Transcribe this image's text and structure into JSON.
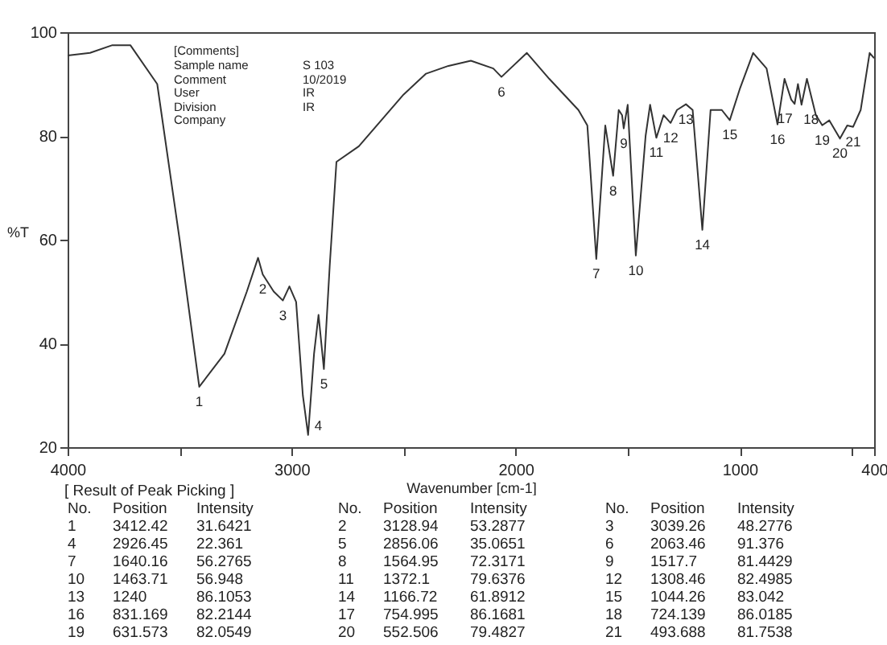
{
  "chart_data": {
    "type": "line",
    "xlabel": "Wavenumber [cm-1]",
    "ylabel": "%T",
    "xlim": [
      4000,
      400
    ],
    "ylim": [
      20,
      100
    ],
    "xticks": [
      4000,
      {
        "value": 3500,
        "label": null
      },
      3000,
      {
        "value": 2500,
        "label": null
      },
      2000,
      {
        "value": 1500,
        "label": null
      },
      1000,
      {
        "value": 500,
        "label": null
      },
      400
    ],
    "yticks": [
      20,
      40,
      60,
      80,
      100
    ],
    "x": [
      4000,
      3900,
      3800,
      3720,
      3600,
      3500,
      3412.42,
      3300,
      3200,
      3150,
      3128.94,
      3080,
      3039.26,
      3010,
      2980,
      2950,
      2926.45,
      2900,
      2880,
      2856.06,
      2830,
      2800,
      2700,
      2600,
      2500,
      2400,
      2300,
      2200,
      2100,
      2063.46,
      1950,
      1850,
      1720,
      1680,
      1640.16,
      1600,
      1564.95,
      1540,
      1525,
      1517.7,
      1500,
      1463.71,
      1420,
      1400,
      1372.1,
      1340,
      1308.46,
      1280,
      1240,
      1210,
      1166.72,
      1130,
      1080,
      1044.26,
      1000,
      940,
      880,
      831.169,
      800,
      770,
      754.995,
      740,
      724.139,
      700,
      660,
      631.573,
      600,
      552.506,
      520,
      493.688,
      460,
      420,
      400
    ],
    "series": [
      {
        "color": "#333333",
        "values": [
          95.5,
          96,
          97.5,
          97.5,
          90,
          60,
          31.6421,
          38,
          50,
          56.5,
          53.2877,
          50,
          48.2776,
          51,
          48,
          30,
          22.361,
          38,
          45.5,
          35.0651,
          55,
          75,
          78,
          83,
          88,
          92,
          93.5,
          94.5,
          93,
          91.376,
          96,
          91,
          85,
          82,
          56.2765,
          82,
          72.3171,
          85,
          84,
          81.4429,
          86,
          56.948,
          80,
          86,
          79.6376,
          84,
          82.4985,
          85,
          86.1053,
          85,
          61.8912,
          85,
          85,
          83.042,
          89,
          96,
          93,
          82.2144,
          91,
          87,
          86.1681,
          90,
          86.0185,
          91,
          84,
          82.0549,
          83,
          79.4827,
          82,
          81.7538,
          85,
          96,
          95
        ]
      }
    ],
    "annotations": [
      "[Comments]",
      "Sample name",
      "S 103",
      "Comment",
      "10/2019",
      "User",
      "IR",
      "Division",
      "IR",
      "Company",
      "[ Result of Peak Picking ]",
      "No.",
      "Position",
      "Intensity",
      "No.",
      "Position",
      "Intensity",
      "No.",
      "Position",
      "Intensity",
      "1",
      "3412.42",
      "31.6421",
      "2",
      "3128.94",
      "53.2877",
      "3",
      "3039.26",
      "48.2776",
      "4",
      "2926.45",
      "22.361",
      "5",
      "2856.06",
      "35.0651",
      "6",
      "2063.46",
      "91.376",
      "7",
      "1640.16",
      "56.2765",
      "8",
      "1564.95",
      "72.3171",
      "9",
      "1517.7",
      "81.4429",
      "10",
      "1463.71",
      "56.948",
      "11",
      "1372.1",
      "79.6376",
      "12",
      "1308.46",
      "82.4985",
      "13",
      "1240",
      "86.1053",
      "14",
      "1166.72",
      "61.8912",
      "15",
      "1044.26",
      "83.042",
      "16",
      "831.169",
      "82.2144",
      "17",
      "754.995",
      "86.1681",
      "18",
      "724.139",
      "86.0185",
      "19",
      "631.573",
      "82.0549",
      "20",
      "552.506",
      "79.4827",
      "21",
      "493.688",
      "81.7538",
      {
        "text": "1",
        "x": 3412.42,
        "y": 31.6421
      },
      {
        "text": "2",
        "x": 3128.94,
        "y": 53.2877
      },
      {
        "text": "3",
        "x": 3039.26,
        "y": 48.2776
      },
      {
        "text": "4",
        "x": 2926.45,
        "y": 22.361
      },
      {
        "text": "5",
        "x": 2856.06,
        "y": 35.0651
      },
      {
        "text": "6",
        "x": 2063.46,
        "y": 91.376
      },
      {
        "text": "7",
        "x": 1640.16,
        "y": 56.2765
      },
      {
        "text": "8",
        "x": 1564.95,
        "y": 72.3171
      },
      {
        "text": "9",
        "x": 1517.7,
        "y": 81.4429
      },
      {
        "text": "10",
        "x": 1463.71,
        "y": 56.948
      },
      {
        "text": "11",
        "x": 1372.1,
        "y": 79.6376
      },
      {
        "text": "12",
        "x": 1308.46,
        "y": 82.4985
      },
      {
        "text": "13",
        "x": 1240,
        "y": 86.1053
      },
      {
        "text": "14",
        "x": 1166.72,
        "y": 61.8912
      },
      {
        "text": "15",
        "x": 1044.26,
        "y": 83.042
      },
      {
        "text": "16",
        "x": 831.169,
        "y": 82.2144
      },
      {
        "text": "17",
        "x": 754.995,
        "y": 86.1681
      },
      {
        "text": "18",
        "x": 724.139,
        "y": 86.0185
      },
      {
        "text": "19",
        "x": 631.573,
        "y": 82.0549
      },
      {
        "text": "20",
        "x": 552.506,
        "y": 79.4827
      },
      {
        "text": "21",
        "x": 493.688,
        "y": 81.7538
      }
    ]
  }
}
